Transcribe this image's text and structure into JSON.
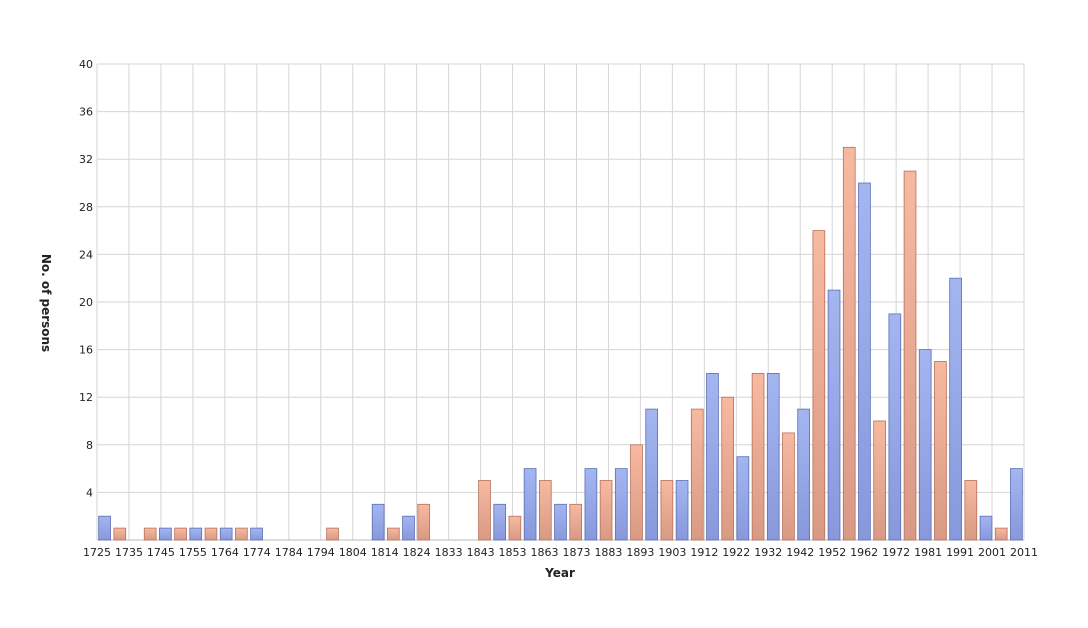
{
  "chart_data": {
    "type": "bar",
    "title": "",
    "xlabel": "Year",
    "ylabel": "No. of persons",
    "ylim": [
      0,
      40
    ],
    "yticks": [
      4,
      8,
      12,
      16,
      20,
      24,
      28,
      32,
      36,
      40
    ],
    "grid": true,
    "legend": "none",
    "colors": {
      "blue_fill": "#a4b6f0",
      "blue_fill_bottom": "#8798dc",
      "blue_stroke": "#5a6fb4",
      "orange_fill": "#f7b9a0",
      "orange_fill_bottom": "#d89a84",
      "orange_stroke": "#b8705a"
    },
    "tick_labels": [
      "1725",
      "1735",
      "1745",
      "1755",
      "1764",
      "1774",
      "1784",
      "1794",
      "1804",
      "1814",
      "1824",
      "1833",
      "1843",
      "1853",
      "1863",
      "1873",
      "1883",
      "1893",
      "1903",
      "1912",
      "1922",
      "1932",
      "1942",
      "1952",
      "1962",
      "1972",
      "1981",
      "1991",
      "2001",
      "2011"
    ],
    "values": [
      2,
      1,
      0,
      1,
      1,
      1,
      1,
      1,
      1,
      1,
      1,
      0,
      0,
      0,
      0,
      1,
      0,
      0,
      3,
      1,
      2,
      3,
      0,
      0,
      0,
      5,
      3,
      2,
      6,
      5,
      3,
      3,
      6,
      5,
      6,
      8,
      11,
      5,
      5,
      11,
      14,
      12,
      7,
      14,
      14,
      9,
      11,
      26,
      21,
      33,
      30,
      10,
      19,
      31,
      16,
      15,
      22,
      5,
      2,
      1,
      6
    ],
    "bar_colors": [
      "blue",
      "orange",
      "blue",
      "orange",
      "blue",
      "orange",
      "blue",
      "orange",
      "blue",
      "orange",
      "blue",
      "orange",
      "blue",
      "orange",
      "blue",
      "orange",
      "blue",
      "orange",
      "blue",
      "orange",
      "blue",
      "orange",
      "blue",
      "orange",
      "blue",
      "orange",
      "blue",
      "orange",
      "blue",
      "orange",
      "blue",
      "orange",
      "blue",
      "orange",
      "blue",
      "orange",
      "blue",
      "orange",
      "blue",
      "orange",
      "blue",
      "orange",
      "blue",
      "orange",
      "blue",
      "orange",
      "blue",
      "orange",
      "blue",
      "orange",
      "blue",
      "orange",
      "blue",
      "orange",
      "blue",
      "orange",
      "blue",
      "orange",
      "blue",
      "orange",
      "blue"
    ]
  }
}
